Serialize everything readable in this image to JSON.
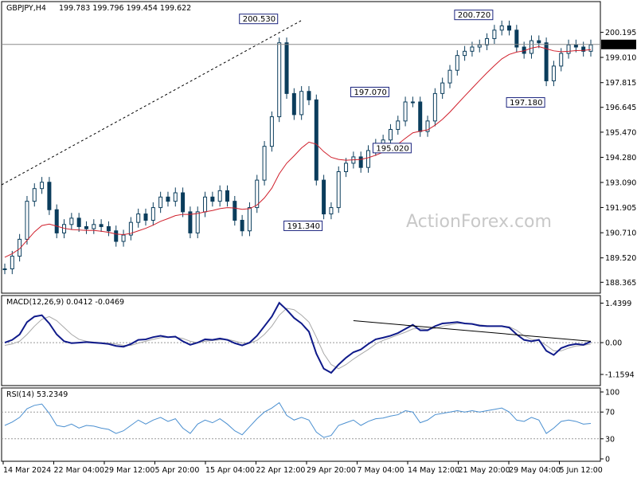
{
  "header": {
    "symbol": "GBPJPY,H4",
    "ohlc": "199.783 199.796 199.454 199.622"
  },
  "watermark": "ActionForex.com",
  "colors": {
    "candle": "#0b3d5c",
    "ma": "#d01f2b",
    "macd": "#0f1a8a",
    "signal": "#a8a8a8",
    "rsi": "#4a8fd0",
    "frame": "#000000",
    "hline": "#8a8a8a",
    "tagBorder": "#1a237e",
    "tagText": "#1a237e"
  },
  "chart_data": [
    {
      "type": "line",
      "title": "GBPJPY,H4",
      "subtitle": "199.783 199.796 199.454 199.622",
      "ylim": [
        188.0,
        201.5
      ],
      "yticks": [
        "200.195",
        "199.010",
        "197.815",
        "196.645",
        "195.470",
        "194.280",
        "193.090",
        "191.905",
        "190.710",
        "189.520",
        "188.365"
      ],
      "last_price": "199.622",
      "x_labels": [
        "14 Mar 2024",
        "22 Mar 04:00",
        "29 Mar 12:00",
        "5 Apr 20:00",
        "15 Apr 04:00",
        "22 Apr 12:00",
        "29 Apr 20:00",
        "7 May 04:00",
        "14 May 12:00",
        "21 May 20:00",
        "29 May 04:00",
        "5 Jun 12:00"
      ],
      "series": [
        {
          "name": "",
          "kind": "close",
          "values": [
            189.0,
            189.6,
            190.4,
            192.2,
            192.8,
            193.1,
            191.8,
            190.7,
            191.1,
            191.4,
            191.0,
            190.9,
            191.1,
            191.0,
            190.8,
            190.3,
            190.6,
            191.2,
            191.6,
            191.3,
            191.9,
            192.4,
            192.2,
            192.6,
            191.7,
            190.7,
            191.7,
            192.4,
            192.2,
            192.7,
            192.2,
            191.3,
            190.8,
            191.9,
            193.2,
            194.8,
            196.2,
            199.7,
            197.3,
            196.3,
            197.4,
            197.0,
            193.2,
            191.6,
            191.9,
            193.6,
            194.0,
            194.3,
            193.8,
            194.6,
            194.9,
            195.1,
            195.6,
            196.0,
            196.9,
            196.9,
            195.5,
            196.0,
            197.3,
            197.8,
            198.4,
            199.1,
            199.3,
            199.5,
            199.6,
            199.9,
            200.3,
            200.5,
            200.3,
            199.5,
            199.2,
            199.8,
            199.7,
            197.9,
            198.6,
            199.2,
            199.6,
            199.5,
            199.3,
            199.6
          ]
        },
        {
          "name": "",
          "kind": "moving-average",
          "values": [
            189.55,
            189.72,
            189.95,
            190.35,
            190.75,
            191.05,
            191.12,
            191.02,
            190.92,
            190.86,
            190.84,
            190.82,
            190.82,
            190.78,
            190.73,
            190.65,
            190.62,
            190.68,
            190.8,
            190.92,
            191.07,
            191.25,
            191.38,
            191.52,
            191.58,
            191.58,
            191.62,
            191.7,
            191.76,
            191.85,
            191.9,
            191.88,
            191.82,
            191.85,
            192.02,
            192.36,
            192.82,
            193.5,
            194.0,
            194.35,
            194.72,
            195.0,
            194.9,
            194.55,
            194.28,
            194.18,
            194.14,
            194.16,
            194.18,
            194.26,
            194.38,
            194.52,
            194.7,
            194.9,
            195.18,
            195.44,
            195.52,
            195.58,
            195.8,
            196.08,
            196.42,
            196.8,
            197.18,
            197.55,
            197.92,
            198.28,
            198.62,
            198.94,
            199.15,
            199.26,
            199.32,
            199.45,
            199.52,
            199.42,
            199.32,
            199.28,
            199.3,
            199.33,
            199.34,
            199.38
          ]
        }
      ],
      "annotations": [
        "200.530",
        "200.720",
        "197.070",
        "197.180",
        "195.020",
        "191.340"
      ]
    },
    {
      "type": "line",
      "title": "MACD(12,26,9) 0.0412 -0.0469",
      "ylim": [
        -1.45,
        1.6
      ],
      "yticks": [
        "1.4399",
        "0.00",
        "-1.1594"
      ],
      "series": [
        {
          "name": "",
          "kind": "macd",
          "values": [
            0.0,
            0.1,
            0.3,
            0.75,
            0.95,
            1.0,
            0.7,
            0.3,
            0.05,
            -0.02,
            0.0,
            0.02,
            0.0,
            -0.02,
            -0.05,
            -0.12,
            -0.15,
            -0.05,
            0.1,
            0.12,
            0.2,
            0.25,
            0.2,
            0.22,
            0.05,
            -0.08,
            0.0,
            0.12,
            0.1,
            0.15,
            0.1,
            -0.02,
            -0.1,
            0.0,
            0.25,
            0.6,
            0.95,
            1.45,
            1.2,
            0.9,
            0.7,
            0.4,
            -0.4,
            -0.95,
            -1.1,
            -0.8,
            -0.55,
            -0.35,
            -0.25,
            -0.05,
            0.12,
            0.18,
            0.25,
            0.35,
            0.5,
            0.65,
            0.45,
            0.45,
            0.6,
            0.7,
            0.72,
            0.75,
            0.7,
            0.68,
            0.62,
            0.6,
            0.6,
            0.6,
            0.55,
            0.3,
            0.1,
            0.05,
            0.1,
            -0.3,
            -0.45,
            -0.2,
            -0.1,
            -0.05,
            -0.08,
            0.04
          ]
        },
        {
          "name": "",
          "kind": "signal",
          "values": [
            -0.1,
            -0.05,
            0.05,
            0.3,
            0.6,
            0.85,
            0.95,
            0.8,
            0.55,
            0.3,
            0.12,
            0.05,
            0.02,
            0.0,
            -0.02,
            -0.05,
            -0.1,
            -0.1,
            -0.02,
            0.05,
            0.12,
            0.18,
            0.2,
            0.2,
            0.15,
            0.05,
            0.0,
            0.05,
            0.08,
            0.1,
            0.12,
            0.06,
            -0.02,
            -0.02,
            0.08,
            0.3,
            0.6,
            1.0,
            1.25,
            1.2,
            1.0,
            0.75,
            0.2,
            -0.4,
            -0.8,
            -0.95,
            -0.8,
            -0.6,
            -0.42,
            -0.25,
            -0.05,
            0.08,
            0.18,
            0.28,
            0.38,
            0.5,
            0.52,
            0.48,
            0.52,
            0.6,
            0.65,
            0.7,
            0.7,
            0.68,
            0.65,
            0.62,
            0.6,
            0.6,
            0.58,
            0.45,
            0.25,
            0.12,
            0.08,
            -0.1,
            -0.3,
            -0.3,
            -0.2,
            -0.12,
            -0.1,
            -0.05
          ]
        }
      ]
    },
    {
      "type": "line",
      "title": "RSI(14) 53.2349",
      "ylim": [
        0,
        100
      ],
      "yticks": [
        "100",
        "70",
        "30",
        "0"
      ],
      "series": [
        {
          "name": "",
          "kind": "rsi",
          "values": [
            50,
            55,
            62,
            75,
            80,
            82,
            68,
            50,
            48,
            52,
            46,
            50,
            49,
            46,
            44,
            38,
            42,
            50,
            58,
            52,
            58,
            62,
            56,
            60,
            46,
            38,
            52,
            58,
            54,
            60,
            52,
            42,
            36,
            48,
            60,
            70,
            76,
            84,
            65,
            58,
            62,
            58,
            40,
            32,
            35,
            50,
            54,
            58,
            50,
            56,
            60,
            61,
            64,
            66,
            72,
            70,
            54,
            58,
            66,
            68,
            70,
            72,
            70,
            72,
            70,
            72,
            74,
            76,
            70,
            58,
            56,
            62,
            58,
            38,
            46,
            56,
            58,
            56,
            52,
            53
          ]
        }
      ]
    }
  ]
}
